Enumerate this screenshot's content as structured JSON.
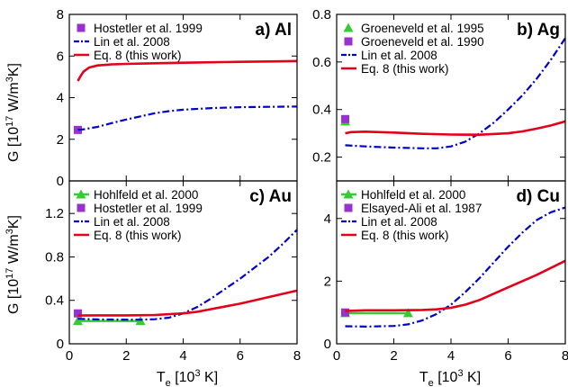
{
  "figure": {
    "ylabel_shared": "G [10",
    "ylabel_exp": "17",
    "ylabel_rest": " W/m",
    "ylabel_exp2": "3",
    "ylabel_end": "K]",
    "xlabel_main": "T",
    "xlabel_sub": "e",
    "xlabel_rest": " [10",
    "xlabel_exp": "3",
    "xlabel_end": " K]"
  },
  "chart_data": [
    {
      "type": "line",
      "panel_label": "a) Al",
      "xlim": [
        0,
        8
      ],
      "ylim": [
        0,
        8
      ],
      "xticks": [
        0,
        2,
        4,
        6,
        8
      ],
      "yticks": [
        0,
        2,
        4,
        6,
        8
      ],
      "xtick_labels": [
        "0",
        "2",
        "4",
        "6",
        "8"
      ],
      "ytick_labels": [
        "0",
        "2",
        "4",
        "6",
        "8"
      ],
      "legend_position": "top-left",
      "series": [
        {
          "name": "Hostetler et al. 1999",
          "style": "marker",
          "marker": "square",
          "color": "#9932cc",
          "x": [
            0.3
          ],
          "y": [
            2.45
          ]
        },
        {
          "name": "Lin et al. 2008",
          "style": "dashdot",
          "color": "#0000cc",
          "x": [
            0.3,
            0.5,
            1.0,
            1.5,
            2.0,
            2.5,
            3.0,
            3.5,
            4.0,
            5.0,
            6.0,
            7.0,
            8.0
          ],
          "y": [
            2.45,
            2.48,
            2.6,
            2.78,
            2.95,
            3.1,
            3.25,
            3.35,
            3.42,
            3.5,
            3.54,
            3.56,
            3.57
          ]
        },
        {
          "name": "Eq. 8    (this work)",
          "style": "solid",
          "color": "#e3001b",
          "x": [
            0.3,
            0.4,
            0.5,
            0.7,
            1.0,
            1.5,
            2.0,
            3.0,
            4.0,
            5.0,
            6.0,
            7.0,
            8.0
          ],
          "y": [
            4.8,
            5.05,
            5.25,
            5.45,
            5.55,
            5.6,
            5.62,
            5.65,
            5.68,
            5.7,
            5.72,
            5.74,
            5.76
          ]
        }
      ]
    },
    {
      "type": "line",
      "panel_label": "b) Ag",
      "xlim": [
        0,
        8
      ],
      "ylim": [
        0.1,
        0.8
      ],
      "xticks": [
        0,
        2,
        4,
        6,
        8
      ],
      "yticks": [
        0.2,
        0.4,
        0.6,
        0.8
      ],
      "xtick_labels": [
        "0",
        "2",
        "4",
        "6",
        "8"
      ],
      "ytick_labels": [
        "0.2",
        "0.4",
        "0.6",
        "0.8"
      ],
      "legend_position": "top-left",
      "series": [
        {
          "name": "Groeneveld et al. 1995",
          "style": "marker",
          "marker": "triangle",
          "color": "#33cc33",
          "x": [
            0.3
          ],
          "y": [
            0.35
          ]
        },
        {
          "name": "Groeneveld et al. 1990",
          "style": "marker",
          "marker": "square",
          "color": "#9932cc",
          "x": [
            0.3
          ],
          "y": [
            0.36
          ]
        },
        {
          "name": "Lin et al. 2008",
          "style": "dashdot",
          "color": "#0000cc",
          "x": [
            0.3,
            1.0,
            2.0,
            3.0,
            3.5,
            4.0,
            4.5,
            5.0,
            5.5,
            6.0,
            6.5,
            7.0,
            7.5,
            8.0
          ],
          "y": [
            0.25,
            0.245,
            0.24,
            0.237,
            0.237,
            0.245,
            0.265,
            0.3,
            0.345,
            0.4,
            0.46,
            0.53,
            0.61,
            0.7
          ]
        },
        {
          "name": "Eq. 8    (this work)",
          "style": "solid",
          "color": "#e3001b",
          "x": [
            0.3,
            0.5,
            1.0,
            2.0,
            3.0,
            4.0,
            5.0,
            6.0,
            6.5,
            7.0,
            7.5,
            8.0
          ],
          "y": [
            0.3,
            0.305,
            0.307,
            0.303,
            0.298,
            0.295,
            0.294,
            0.3,
            0.308,
            0.32,
            0.333,
            0.35
          ]
        }
      ]
    },
    {
      "type": "line",
      "panel_label": "c) Au",
      "xlim": [
        0,
        8
      ],
      "ylim": [
        0,
        1.5
      ],
      "xticks": [
        0,
        2,
        4,
        6,
        8
      ],
      "yticks": [
        0,
        0.4,
        0.8,
        1.2
      ],
      "xtick_labels": [
        "0",
        "2",
        "4",
        "6",
        "8"
      ],
      "ytick_labels": [
        "0",
        "0.4",
        "0.8",
        "1.2"
      ],
      "legend_position": "top-left",
      "series": [
        {
          "name": "Hohlfeld et al. 2000",
          "style": "line-marker",
          "marker": "triangle",
          "color": "#33cc33",
          "x": [
            0.3,
            2.5
          ],
          "y": [
            0.21,
            0.21
          ]
        },
        {
          "name": "Hostetler et al. 1999",
          "style": "marker",
          "marker": "square",
          "color": "#9932cc",
          "x": [
            0.3
          ],
          "y": [
            0.28
          ]
        },
        {
          "name": "Lin et al. 2008",
          "style": "dashdot",
          "color": "#0000cc",
          "x": [
            0.3,
            1.0,
            2.0,
            2.5,
            3.0,
            3.5,
            4.0,
            4.5,
            5.0,
            5.5,
            6.0,
            6.5,
            7.0,
            7.5,
            8.0
          ],
          "y": [
            0.23,
            0.225,
            0.222,
            0.222,
            0.226,
            0.24,
            0.28,
            0.34,
            0.42,
            0.51,
            0.6,
            0.7,
            0.8,
            0.92,
            1.05
          ]
        },
        {
          "name": "Eq. 8    (this work)",
          "style": "solid",
          "color": "#e3001b",
          "x": [
            0.3,
            1.0,
            2.0,
            3.0,
            4.0,
            4.5,
            5.0,
            6.0,
            7.0,
            8.0
          ],
          "y": [
            0.26,
            0.262,
            0.262,
            0.265,
            0.28,
            0.295,
            0.32,
            0.37,
            0.43,
            0.49
          ]
        }
      ]
    },
    {
      "type": "line",
      "panel_label": "d) Cu",
      "xlim": [
        0,
        8
      ],
      "ylim": [
        0,
        5.2
      ],
      "xticks": [
        0,
        2,
        4,
        6,
        8
      ],
      "yticks": [
        0,
        2,
        4
      ],
      "xtick_labels": [
        "0",
        "2",
        "4",
        "6",
        "8"
      ],
      "ytick_labels": [
        "0",
        "2",
        "4"
      ],
      "legend_position": "top-left",
      "series": [
        {
          "name": "Hohlfeld et al. 2000",
          "style": "line-marker",
          "marker": "triangle",
          "color": "#33cc33",
          "x": [
            0.3,
            2.5
          ],
          "y": [
            0.98,
            0.98
          ]
        },
        {
          "name": "Elsayed-Ali et al. 1987",
          "style": "marker",
          "marker": "square",
          "color": "#9932cc",
          "x": [
            0.3
          ],
          "y": [
            1.0
          ]
        },
        {
          "name": "Lin et al. 2008",
          "style": "dashdot",
          "color": "#0000cc",
          "x": [
            0.3,
            1.0,
            2.0,
            2.5,
            3.0,
            3.5,
            4.0,
            4.5,
            5.0,
            5.5,
            6.0,
            6.5,
            7.0,
            7.5,
            8.0
          ],
          "y": [
            0.56,
            0.55,
            0.57,
            0.62,
            0.75,
            0.95,
            1.25,
            1.65,
            2.1,
            2.6,
            3.1,
            3.55,
            3.95,
            4.2,
            4.35
          ]
        },
        {
          "name": "Eq. 8    (this work)",
          "style": "solid",
          "color": "#e3001b",
          "x": [
            0.3,
            1.0,
            2.0,
            3.0,
            3.5,
            4.0,
            4.5,
            5.0,
            6.0,
            7.0,
            8.0
          ],
          "y": [
            1.05,
            1.07,
            1.07,
            1.08,
            1.1,
            1.15,
            1.25,
            1.4,
            1.8,
            2.2,
            2.65
          ]
        }
      ]
    }
  ]
}
